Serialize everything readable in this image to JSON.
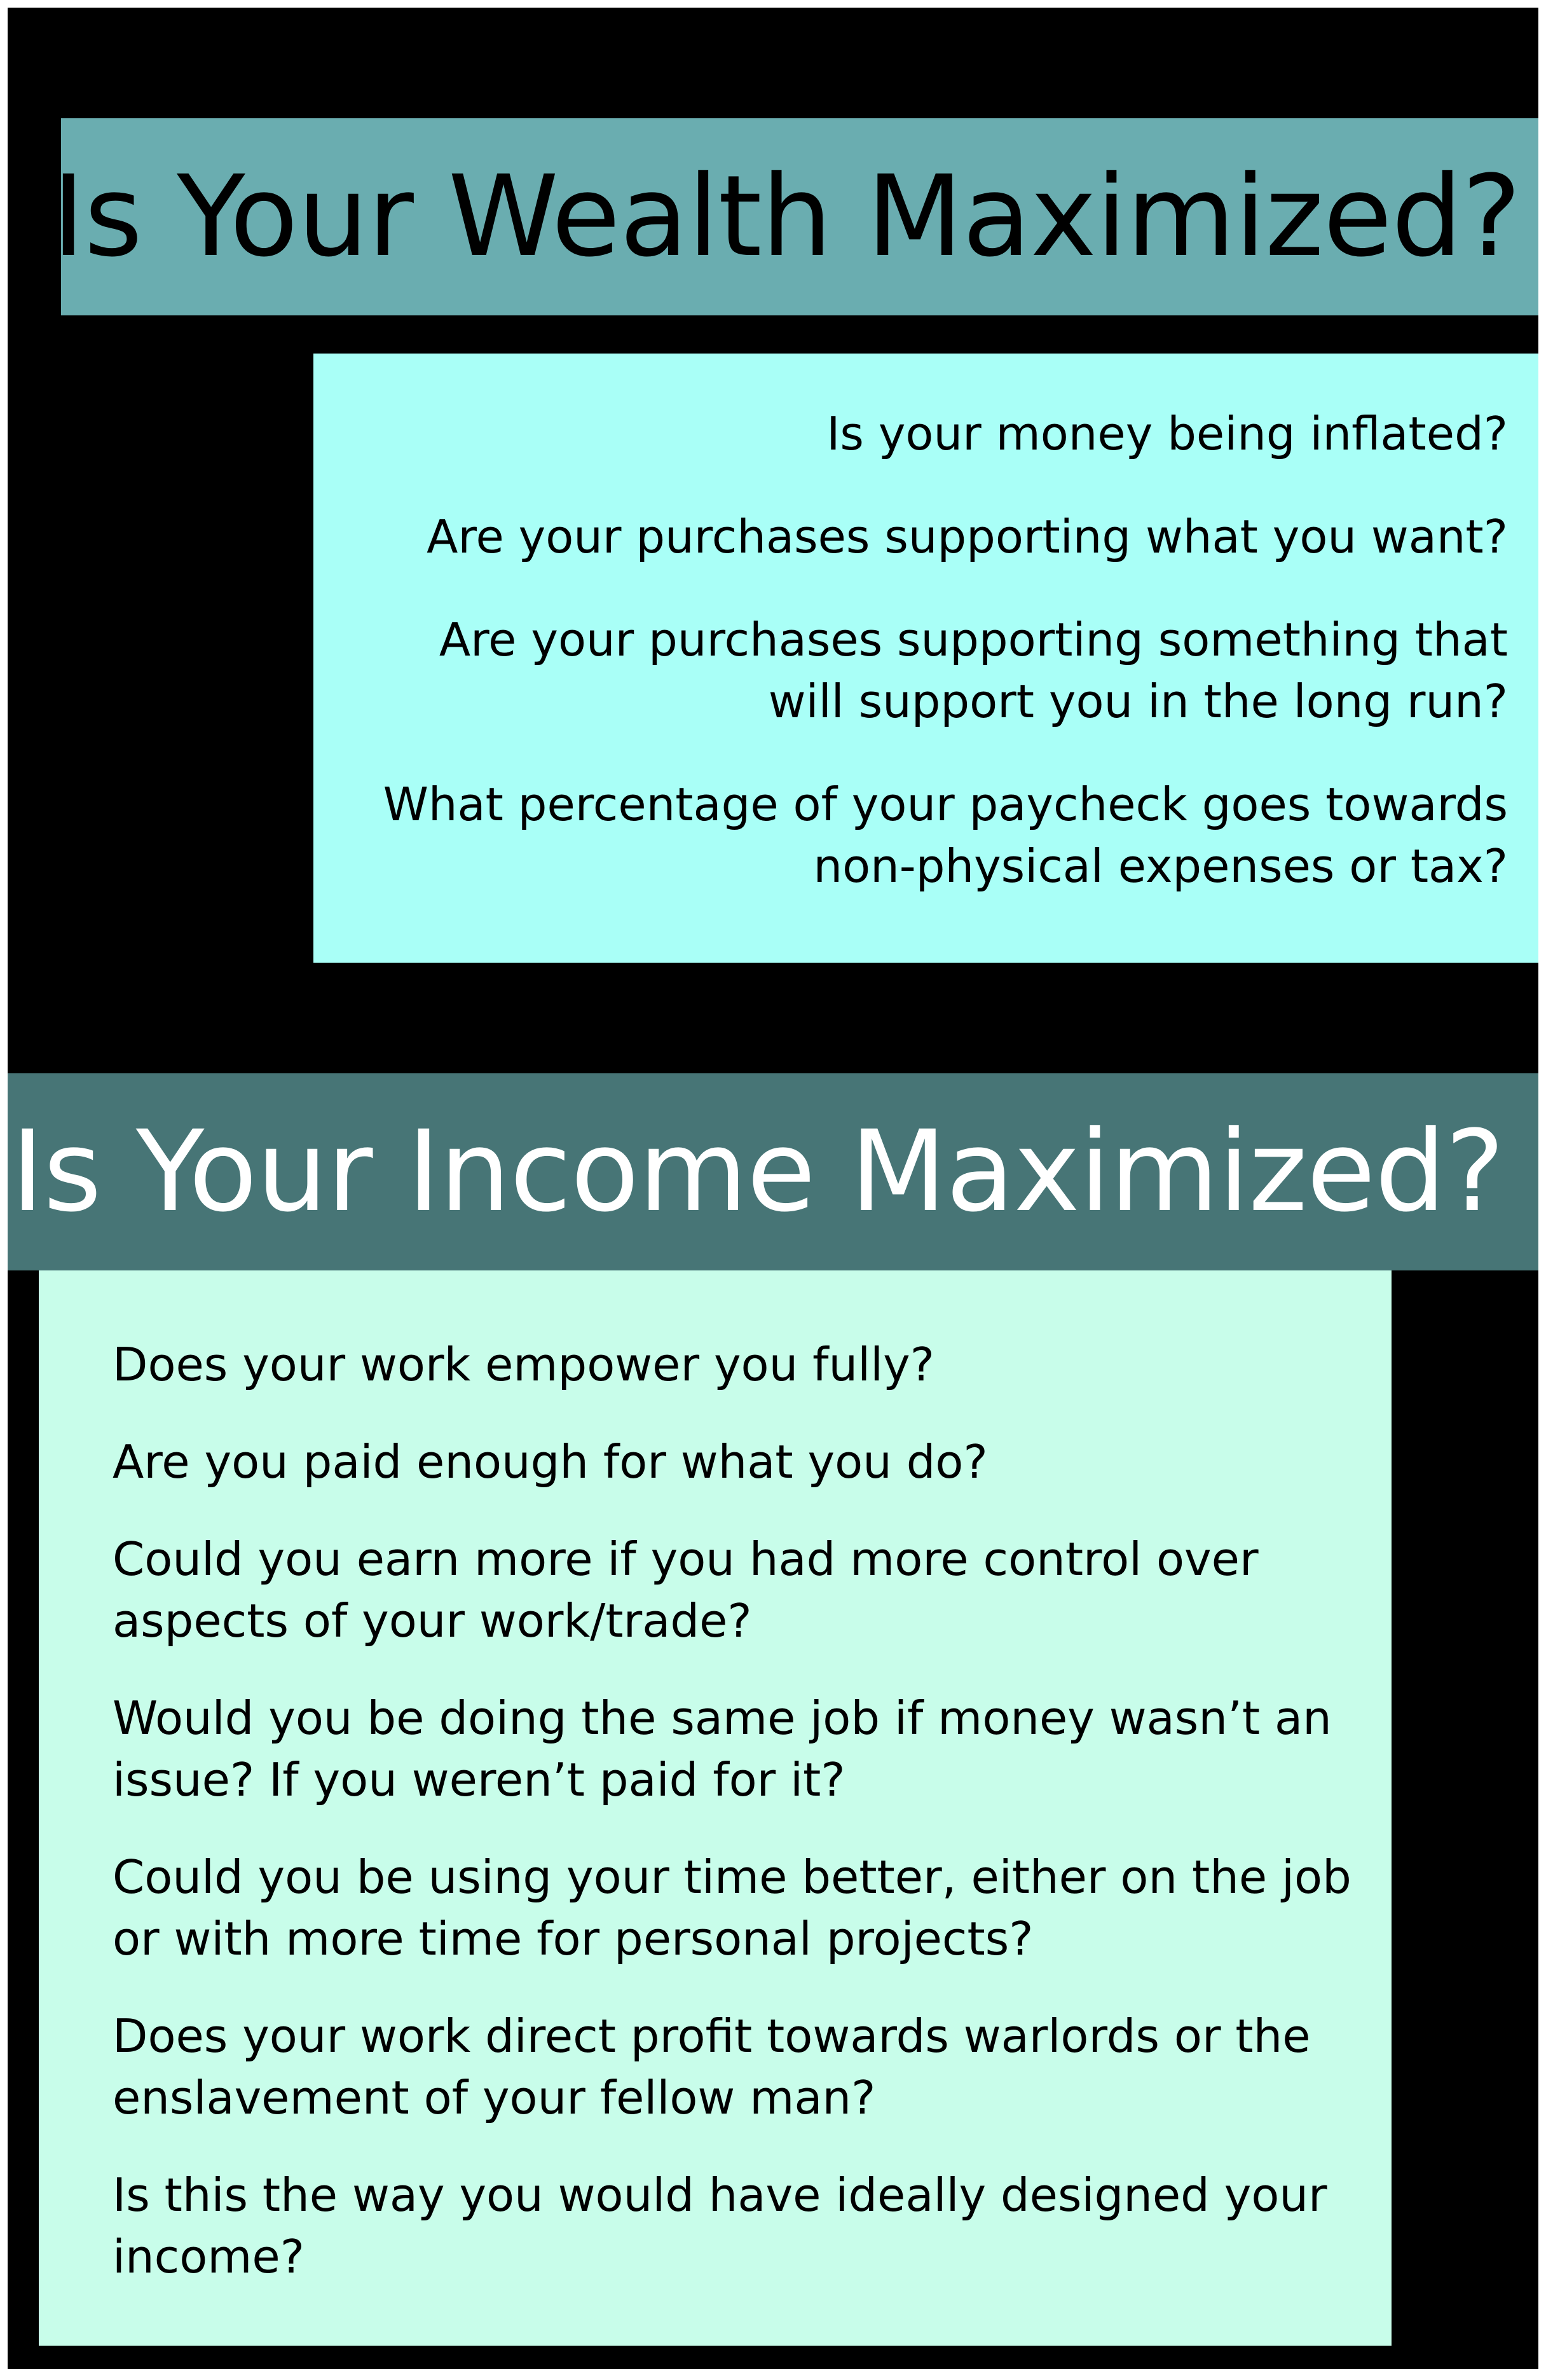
{
  "wealth": {
    "title": "Is Your Wealth Maximized?",
    "questions": [
      "Is your money being inflated?",
      "Are your purchases supporting what you want?",
      "Are your purchases supporting something that will support you in the long run?",
      "What percentage of your paycheck goes towards non-physical expenses or tax?"
    ]
  },
  "income": {
    "title": "Is Your Income Maximized?",
    "questions": [
      "Does your work empower you fully?",
      "Are you paid enough for what you do?",
      "Could you earn more if you had more control over aspects of your work/trade?",
      "Would you be doing the same job if money wasn’t an issue? If you weren’t paid for it?",
      "Could you be using your time better, either on the job or with more time for personal projects?",
      "Does your work direct profit towards warlords or the enslavement of your fellow man?",
      "Is this the way you would have ideally designed your income?"
    ]
  },
  "colors": {
    "background": "#000000",
    "wealth_header": "#6aadb0",
    "wealth_box": "#a9fff7",
    "income_header": "#477576",
    "income_box": "#c8fdea"
  }
}
